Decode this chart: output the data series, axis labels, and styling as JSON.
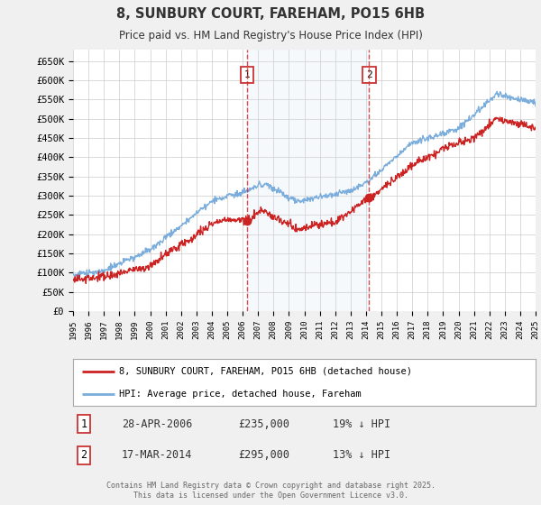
{
  "title_line1": "8, SUNBURY COURT, FAREHAM, PO15 6HB",
  "title_line2": "Price paid vs. HM Land Registry's House Price Index (HPI)",
  "ylim": [
    0,
    680000
  ],
  "yticks": [
    0,
    50000,
    100000,
    150000,
    200000,
    250000,
    300000,
    350000,
    400000,
    450000,
    500000,
    550000,
    600000,
    650000
  ],
  "ytick_labels": [
    "£0",
    "£50K",
    "£100K",
    "£150K",
    "£200K",
    "£250K",
    "£300K",
    "£350K",
    "£400K",
    "£450K",
    "£500K",
    "£550K",
    "£600K",
    "£650K"
  ],
  "hpi_color": "#7aaddc",
  "price_color": "#cc2222",
  "marker1_date": 2006.3,
  "marker1_price": 235000,
  "marker2_date": 2014.2,
  "marker2_price": 295000,
  "legend_label1": "8, SUNBURY COURT, FAREHAM, PO15 6HB (detached house)",
  "legend_label2": "HPI: Average price, detached house, Fareham",
  "footnote": "Contains HM Land Registry data © Crown copyright and database right 2025.\nThis data is licensed under the Open Government Licence v3.0.",
  "background_color": "#f0f0f0",
  "plot_bg_color": "#ffffff",
  "grid_color": "#cccccc",
  "span_color": "#d0dff0"
}
